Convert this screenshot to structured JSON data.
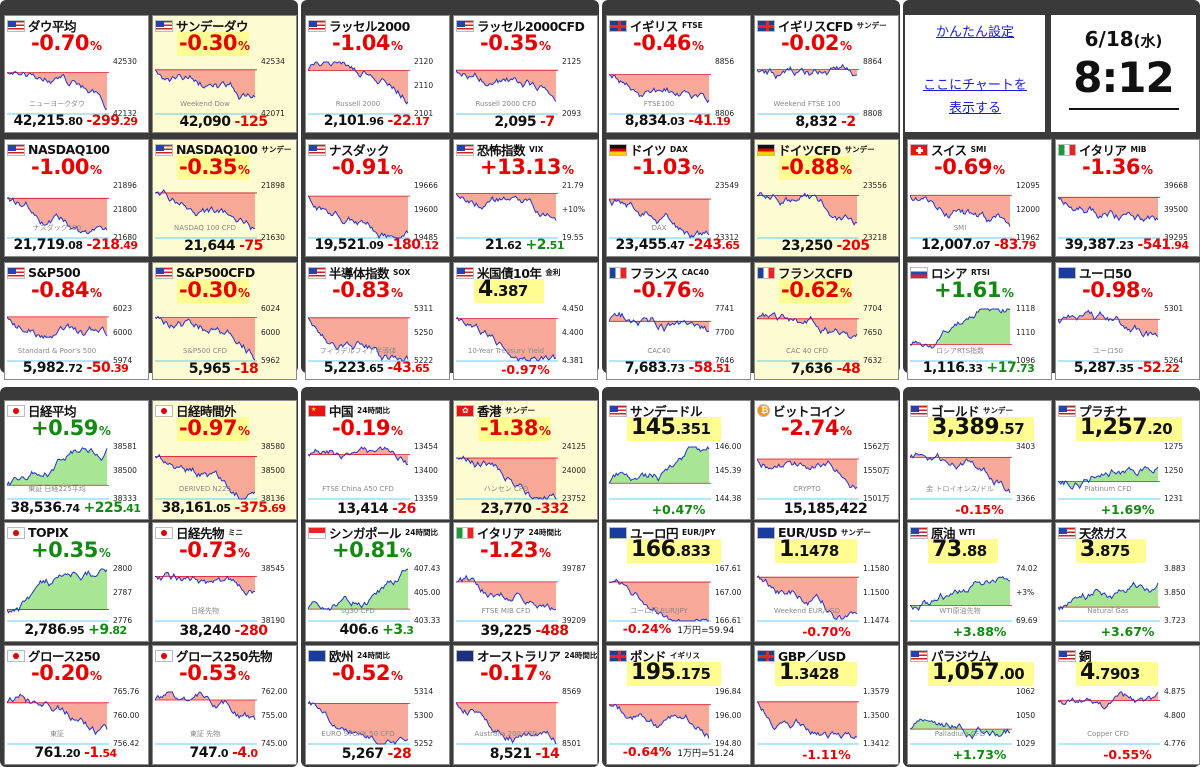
{
  "settings": {
    "easy_setup": "かんたん設定",
    "chart_line1": "ここにチャートを",
    "chart_line2": "表示する"
  },
  "clock": {
    "date": "6/18",
    "weekday": "(水)",
    "time": "8:12"
  },
  "cells": [
    {
      "id": "dow",
      "x": 0,
      "y": 0,
      "flag": "us",
      "name": "ダウ平均",
      "sub": "",
      "pct": "-0.70",
      "dir": "neg",
      "hl": false,
      "int": "42,215",
      "dec": ".80",
      "chg": "-299",
      "chgd": ".29",
      "ticks": [
        "42530",
        "",
        "42132"
      ],
      "wm": "ニューヨークダウ",
      "cap": "",
      "capdir": "neg",
      "extra": ""
    },
    {
      "id": "sunday-dow",
      "x": 1,
      "y": 0,
      "flag": "us",
      "name": "サンデーダウ",
      "sub": "",
      "pct": "-0.30",
      "dir": "neg",
      "hl": true,
      "int": "42,090",
      "dec": "",
      "chg": "-125",
      "chgd": "",
      "ticks": [
        "42534",
        "",
        "42071"
      ],
      "wm": "Weekend Dow",
      "cap": "",
      "capdir": "neg",
      "extra": ""
    },
    {
      "id": "russell",
      "x": 2,
      "y": 0,
      "flag": "us",
      "name": "ラッセル2000",
      "sub": "",
      "pct": "-1.04",
      "dir": "neg",
      "hl": false,
      "int": "2,101",
      "dec": ".96",
      "chg": "-22",
      "chgd": ".17",
      "ticks": [
        "2120",
        "2110",
        "2101"
      ],
      "wm": "Russell 2000",
      "cap": "",
      "capdir": "neg",
      "extra": ""
    },
    {
      "id": "russell-cfd",
      "x": 3,
      "y": 0,
      "flag": "us",
      "name": "ラッセル2000CFD",
      "sub": "",
      "pct": "-0.35",
      "dir": "neg",
      "hl": false,
      "int": "2,095",
      "dec": "",
      "chg": "-7",
      "chgd": "",
      "ticks": [
        "2125",
        "",
        "2093"
      ],
      "wm": "Russell 2000 CFD",
      "cap": "",
      "capdir": "neg",
      "extra": ""
    },
    {
      "id": "ftse",
      "x": 4,
      "y": 0,
      "flag": "uk",
      "name": "イギリス",
      "sub": "FTSE",
      "pct": "-0.46",
      "dir": "neg",
      "hl": false,
      "int": "8,834",
      "dec": ".03",
      "chg": "-41",
      "chgd": ".19",
      "ticks": [
        "8856",
        "",
        "8806"
      ],
      "wm": "FTSE100",
      "cap": "",
      "capdir": "neg",
      "extra": ""
    },
    {
      "id": "uk-cfd",
      "x": 5,
      "y": 0,
      "flag": "uk",
      "name": "イギリスCFD",
      "sub": "サンデー",
      "pct": "-0.02",
      "dir": "neg",
      "hl": false,
      "int": "8,832",
      "dec": "",
      "chg": "-2",
      "chgd": "",
      "ticks": [
        "8864",
        "",
        "8808"
      ],
      "wm": "Weekend FTSE 100",
      "cap": "",
      "capdir": "neg",
      "extra": ""
    },
    {
      "id": "nasdaq100",
      "x": 0,
      "y": 1,
      "flag": "us",
      "name": "NASDAQ100",
      "sub": "",
      "pct": "-1.00",
      "dir": "neg",
      "hl": false,
      "int": "21,719",
      "dec": ".08",
      "chg": "-218",
      "chgd": ".49",
      "ticks": [
        "21896",
        "21800",
        "21680"
      ],
      "wm": "ナスダック100",
      "cap": "",
      "capdir": "neg",
      "extra": ""
    },
    {
      "id": "nasdaq100-sun",
      "x": 1,
      "y": 1,
      "flag": "us",
      "name": "NASDAQ100",
      "sub": "サンデー",
      "pct": "-0.35",
      "dir": "neg",
      "hl": true,
      "int": "21,644",
      "dec": "",
      "chg": "-75",
      "chgd": "",
      "ticks": [
        "21898",
        "",
        "21630"
      ],
      "wm": "NASDAQ 100 CFD",
      "cap": "",
      "capdir": "neg",
      "extra": ""
    },
    {
      "id": "nasdaq",
      "x": 2,
      "y": 1,
      "flag": "us",
      "name": "ナスダック",
      "sub": "",
      "pct": "-0.91",
      "dir": "neg",
      "hl": false,
      "int": "19,521",
      "dec": ".09",
      "chg": "-180",
      "chgd": ".12",
      "ticks": [
        "19666",
        "19600",
        "19485"
      ],
      "wm": "",
      "cap": "",
      "capdir": "neg",
      "extra": ""
    },
    {
      "id": "vix",
      "x": 3,
      "y": 1,
      "flag": "us",
      "name": "恐怖指数",
      "sub": "VIX",
      "pct": "+13.13",
      "dir": "neg",
      "hl": false,
      "int": "21",
      "dec": ".62",
      "chg": "+2",
      "chgd": ".51",
      "ticks": [
        "21.79",
        "+10%",
        "19.55"
      ],
      "wm": "",
      "cap": "",
      "capdir": "neg",
      "extra": ""
    },
    {
      "id": "dax",
      "x": 4,
      "y": 1,
      "flag": "de",
      "name": "ドイツ",
      "sub": "DAX",
      "pct": "-1.03",
      "dir": "neg",
      "hl": false,
      "int": "23,455",
      "dec": ".47",
      "chg": "-243",
      "chgd": ".65",
      "ticks": [
        "23549",
        "",
        "23312"
      ],
      "wm": "DAX",
      "cap": "",
      "capdir": "neg",
      "extra": ""
    },
    {
      "id": "de-cfd",
      "x": 5,
      "y": 1,
      "flag": "de",
      "name": "ドイツCFD",
      "sub": "サンデー",
      "pct": "-0.88",
      "dir": "neg",
      "hl": true,
      "int": "23,250",
      "dec": "",
      "chg": "-205",
      "chgd": "",
      "ticks": [
        "23556",
        "",
        "23218"
      ],
      "wm": "",
      "cap": "",
      "capdir": "neg",
      "extra": ""
    },
    {
      "id": "smi",
      "x": 6,
      "y": 1,
      "flag": "ch",
      "name": "スイス",
      "sub": "SMI",
      "pct": "-0.69",
      "dir": "neg",
      "hl": false,
      "int": "12,007",
      "dec": ".07",
      "chg": "-83",
      "chgd": ".79",
      "ticks": [
        "12095",
        "12000",
        "11962"
      ],
      "wm": "SMI",
      "cap": "",
      "capdir": "neg",
      "extra": ""
    },
    {
      "id": "mib",
      "x": 7,
      "y": 1,
      "flag": "it",
      "name": "イタリア",
      "sub": "MIB",
      "pct": "-1.36",
      "dir": "neg",
      "hl": false,
      "int": "39,387",
      "dec": ".23",
      "chg": "-541",
      "chgd": ".94",
      "ticks": [
        "39668",
        "39500",
        "39295"
      ],
      "wm": "",
      "cap": "",
      "capdir": "neg",
      "extra": ""
    },
    {
      "id": "sp500",
      "x": 0,
      "y": 2,
      "flag": "us",
      "name": "S&P500",
      "sub": "",
      "pct": "-0.84",
      "dir": "neg",
      "hl": false,
      "int": "5,982",
      "dec": ".72",
      "chg": "-50",
      "chgd": ".39",
      "ticks": [
        "6023",
        "6000",
        "5974"
      ],
      "wm": "Standard & Poor's 500",
      "cap": "",
      "capdir": "neg",
      "extra": ""
    },
    {
      "id": "sp500-cfd",
      "x": 1,
      "y": 2,
      "flag": "us",
      "name": "S&P500CFD",
      "sub": "",
      "pct": "-0.30",
      "dir": "neg",
      "hl": true,
      "int": "5,965",
      "dec": "",
      "chg": "-18",
      "chgd": "",
      "ticks": [
        "6024",
        "6000",
        "5962"
      ],
      "wm": "S&P500 CFD",
      "cap": "",
      "capdir": "neg",
      "extra": ""
    },
    {
      "id": "sox",
      "x": 2,
      "y": 2,
      "flag": "us",
      "name": "半導体指数",
      "sub": "SOX",
      "pct": "-0.83",
      "dir": "neg",
      "hl": false,
      "int": "5,223",
      "dec": ".65",
      "chg": "-43",
      "chgd": ".65",
      "ticks": [
        "5311",
        "5250",
        "5222"
      ],
      "wm": "フィラデルフィア半導体",
      "cap": "",
      "capdir": "neg",
      "extra": ""
    },
    {
      "id": "us10y",
      "x": 3,
      "y": 2,
      "flag": "us",
      "name": "米国債10年",
      "sub": "金利",
      "pct": "4.387",
      "dir": "blk",
      "hl": false,
      "int": "",
      "dec": "",
      "chg": "",
      "chgd": "",
      "ticks": [
        "4.450",
        "4.400",
        "4.381"
      ],
      "wm": "10-Year Treasury Yield",
      "cap": "-0.97%",
      "capdir": "neg",
      "extra": ""
    },
    {
      "id": "cac",
      "x": 4,
      "y": 2,
      "flag": "fr",
      "name": "フランス",
      "sub": "CAC40",
      "pct": "-0.76",
      "dir": "neg",
      "hl": false,
      "int": "7,683",
      "dec": ".73",
      "chg": "-58",
      "chgd": ".51",
      "ticks": [
        "7741",
        "7700",
        "7646"
      ],
      "wm": "CAC40",
      "cap": "",
      "capdir": "neg",
      "extra": ""
    },
    {
      "id": "fr-cfd",
      "x": 5,
      "y": 2,
      "flag": "fr",
      "name": "フランスCFD",
      "sub": "",
      "pct": "-0.62",
      "dir": "neg",
      "hl": true,
      "int": "7,636",
      "dec": "",
      "chg": "-48",
      "chgd": "",
      "ticks": [
        "7704",
        "7650",
        "7632"
      ],
      "wm": "CAC 40 CFD",
      "cap": "",
      "capdir": "neg",
      "extra": ""
    },
    {
      "id": "rtsi",
      "x": 6,
      "y": 2,
      "flag": "ru",
      "name": "ロシア",
      "sub": "RTSI",
      "pct": "+1.61",
      "dir": "pos",
      "hl": false,
      "int": "1,116",
      "dec": ".33",
      "chg": "+17",
      "chgd": ".73",
      "ticks": [
        "1118",
        "1110",
        "1096"
      ],
      "wm": "ロシアRTS指数",
      "cap": "",
      "capdir": "neg",
      "extra": ""
    },
    {
      "id": "euro50",
      "x": 7,
      "y": 2,
      "flag": "eu",
      "name": "ユーロ50",
      "sub": "",
      "pct": "-0.98",
      "dir": "neg",
      "hl": false,
      "int": "5,287",
      "dec": ".35",
      "chg": "-52",
      "chgd": ".22",
      "ticks": [
        "5301",
        "",
        "5264"
      ],
      "wm": "ユーロ50",
      "cap": "",
      "capdir": "neg",
      "extra": ""
    },
    {
      "id": "n225",
      "x": 0,
      "y": 3,
      "flag": "jp",
      "name": "日経平均",
      "sub": "",
      "pct": "+0.59",
      "dir": "pos",
      "hl": false,
      "int": "38,536",
      "dec": ".74",
      "chg": "+225",
      "chgd": ".41",
      "ticks": [
        "38581",
        "38500",
        "38333"
      ],
      "wm": "東証 日経225平均",
      "cap": "",
      "capdir": "neg",
      "extra": ""
    },
    {
      "id": "n225-night",
      "x": 1,
      "y": 3,
      "flag": "jp",
      "name": "日経時間外",
      "sub": "",
      "pct": "-0.97",
      "dir": "neg",
      "hl": true,
      "int": "38,161",
      "dec": ".05",
      "chg": "-375",
      "chgd": ".69",
      "ticks": [
        "38580",
        "38500",
        "38136"
      ],
      "wm": "DERIVED N225",
      "cap": "",
      "capdir": "neg",
      "extra": ""
    },
    {
      "id": "china",
      "x": 2,
      "y": 3,
      "flag": "cn",
      "name": "中国",
      "sub": "24時間比",
      "pct": "-0.19",
      "dir": "neg",
      "hl": false,
      "int": "13,414",
      "dec": "",
      "chg": "-26",
      "chgd": "",
      "ticks": [
        "13454",
        "13400",
        "13359"
      ],
      "wm": "FTSE China A50 CFD",
      "cap": "",
      "capdir": "neg",
      "extra": ""
    },
    {
      "id": "hk",
      "x": 3,
      "y": 3,
      "flag": "hk",
      "name": "香港",
      "sub": "サンデー",
      "pct": "-1.38",
      "dir": "neg",
      "hl": true,
      "int": "23,770",
      "dec": "",
      "chg": "-332",
      "chgd": "",
      "ticks": [
        "24125",
        "24000",
        "23752"
      ],
      "wm": "ハンセン CFD",
      "cap": "",
      "capdir": "neg",
      "extra": ""
    },
    {
      "id": "usdjpy",
      "x": 4,
      "y": 3,
      "flag": "us",
      "name": "サンデードル",
      "sub": "",
      "pct": "145.351",
      "dir": "blk",
      "hl": false,
      "int": "",
      "dec": "",
      "chg": "",
      "chgd": "",
      "ticks": [
        "146.00",
        "145.39",
        "144.38"
      ],
      "wm": "",
      "cap": "+0.47%",
      "capdir": "pos",
      "extra": ""
    },
    {
      "id": "btc",
      "x": 5,
      "y": 3,
      "flag": "btc",
      "name": "ビットコイン",
      "sub": "",
      "pct": "-2.74",
      "dir": "neg",
      "hl": false,
      "int": "15,185,422",
      "dec": "",
      "chg": "",
      "chgd": "",
      "ticks": [
        "1562万",
        "1550万",
        "1501万"
      ],
      "wm": "CRYPTO",
      "cap": "",
      "capdir": "neg",
      "extra": ""
    },
    {
      "id": "gold",
      "x": 6,
      "y": 3,
      "flag": "us",
      "name": "ゴールド",
      "sub": "サンデー",
      "pct": "3,389.57",
      "dir": "blk",
      "hl": false,
      "int": "",
      "dec": "",
      "chg": "",
      "chgd": "",
      "ticks": [
        "3403",
        "",
        "3366"
      ],
      "wm": "金 トロイオンス/ドル",
      "cap": "-0.15%",
      "capdir": "neg",
      "extra": ""
    },
    {
      "id": "platinum",
      "x": 7,
      "y": 3,
      "flag": "us",
      "name": "プラチナ",
      "sub": "",
      "pct": "1,257.20",
      "dir": "blk",
      "hl": false,
      "int": "",
      "dec": "",
      "chg": "",
      "chgd": "",
      "ticks": [
        "1275",
        "1250",
        "1231"
      ],
      "wm": "Platinum CFD",
      "cap": "+1.69%",
      "capdir": "pos",
      "extra": ""
    },
    {
      "id": "topix",
      "x": 0,
      "y": 4,
      "flag": "jp",
      "name": "TOPIX",
      "sub": "",
      "pct": "+0.35",
      "dir": "pos",
      "hl": false,
      "int": "2,786",
      "dec": ".95",
      "chg": "+9",
      "chgd": ".82",
      "ticks": [
        "2800",
        "2787",
        "2776"
      ],
      "wm": "",
      "cap": "",
      "capdir": "neg",
      "extra": ""
    },
    {
      "id": "n225-mini",
      "x": 1,
      "y": 4,
      "flag": "jp",
      "name": "日経先物",
      "sub": "ミニ",
      "pct": "-0.73",
      "dir": "neg",
      "hl": false,
      "int": "38,240",
      "dec": "",
      "chg": "-280",
      "chgd": "",
      "ticks": [
        "38545",
        "",
        "38190"
      ],
      "wm": "日経先物",
      "cap": "",
      "capdir": "neg",
      "extra": ""
    },
    {
      "id": "sg",
      "x": 2,
      "y": 4,
      "flag": "sg",
      "name": "シンガポール",
      "sub": "24時間比",
      "pct": "+0.81",
      "dir": "pos",
      "hl": false,
      "int": "406",
      "dec": ".6",
      "chg": "+3",
      "chgd": ".3",
      "ticks": [
        "407.43",
        "405.00",
        "403.33"
      ],
      "wm": "sg30 CFD",
      "cap": "",
      "capdir": "neg",
      "extra": ""
    },
    {
      "id": "it24",
      "x": 3,
      "y": 4,
      "flag": "it",
      "name": "イタリア",
      "sub": "24時間比",
      "pct": "-1.23",
      "dir": "neg",
      "hl": false,
      "int": "39,225",
      "dec": "",
      "chg": "-488",
      "chgd": "",
      "ticks": [
        "39787",
        "",
        "39209"
      ],
      "wm": "FTSE MIB CFD",
      "cap": "",
      "capdir": "neg",
      "extra": ""
    },
    {
      "id": "eurjpy",
      "x": 4,
      "y": 4,
      "flag": "eu",
      "name": "ユーロ円",
      "sub": "EUR/JPY",
      "pct": "166.833",
      "dir": "blk",
      "hl": false,
      "int": "",
      "dec": "",
      "chg": "",
      "chgd": "",
      "ticks": [
        "167.61",
        "167.00",
        "166.61"
      ],
      "wm": "ユーロ円 EUR/JPY",
      "cap": "-0.24%",
      "capdir": "neg",
      "extra": "1万円=59.94"
    },
    {
      "id": "eurusd",
      "x": 5,
      "y": 4,
      "flag": "eu",
      "name": "EUR/USD",
      "sub": "サンデー",
      "pct": "1.1478",
      "dir": "blk",
      "hl": false,
      "int": "",
      "dec": "",
      "chg": "",
      "chgd": "",
      "ticks": [
        "1.1580",
        "1.1500",
        "1.1474"
      ],
      "wm": "Weekend EUR/USD",
      "cap": "-0.70%",
      "capdir": "neg",
      "extra": ""
    },
    {
      "id": "wti",
      "x": 6,
      "y": 4,
      "flag": "us",
      "name": "原油",
      "sub": "WTI",
      "pct": "73.88",
      "dir": "blk",
      "hl": false,
      "int": "",
      "dec": "",
      "chg": "",
      "chgd": "",
      "ticks": [
        "74.02",
        "+3%",
        "69.69"
      ],
      "wm": "WTI原油先物",
      "cap": "+3.88%",
      "capdir": "pos",
      "extra": ""
    },
    {
      "id": "natgas",
      "x": 7,
      "y": 4,
      "flag": "us",
      "name": "天然ガス",
      "sub": "",
      "pct": "3.875",
      "dir": "blk",
      "hl": false,
      "int": "",
      "dec": "",
      "chg": "",
      "chgd": "",
      "ticks": [
        "3.883",
        "3.850",
        "3.723"
      ],
      "wm": "Natural Gas",
      "cap": "+3.67%",
      "capdir": "pos",
      "extra": ""
    },
    {
      "id": "growth250",
      "x": 0,
      "y": 5,
      "flag": "jp",
      "name": "グロース250",
      "sub": "",
      "pct": "-0.20",
      "dir": "neg",
      "hl": false,
      "int": "761",
      "dec": ".20",
      "chg": "-1",
      "chgd": ".54",
      "ticks": [
        "765.76",
        "760.00",
        "756.42"
      ],
      "wm": "東証",
      "cap": "",
      "capdir": "neg",
      "extra": ""
    },
    {
      "id": "growth250f",
      "x": 1,
      "y": 5,
      "flag": "jp",
      "name": "グロース250先物",
      "sub": "",
      "pct": "-0.53",
      "dir": "neg",
      "hl": false,
      "int": "747",
      "dec": ".0",
      "chg": "-4",
      "chgd": ".0",
      "ticks": [
        "762.00",
        "755.00",
        "745.00"
      ],
      "wm": "東証 先物",
      "cap": "",
      "capdir": "neg",
      "extra": ""
    },
    {
      "id": "europe",
      "x": 2,
      "y": 5,
      "flag": "eu",
      "name": "欧州",
      "sub": "24時間比",
      "pct": "-0.52",
      "dir": "neg",
      "hl": false,
      "int": "5,267",
      "dec": "",
      "chg": "-28",
      "chgd": "",
      "ticks": [
        "5314",
        "5300",
        "5252"
      ],
      "wm": "EURO STOXX 50 CFD",
      "cap": "",
      "capdir": "neg",
      "extra": ""
    },
    {
      "id": "au",
      "x": 3,
      "y": 5,
      "flag": "au",
      "name": "オーストラリア",
      "sub": "24時間比",
      "pct": "-0.17",
      "dir": "neg",
      "hl": false,
      "int": "8,521",
      "dec": "",
      "chg": "-14",
      "chgd": "",
      "ticks": [
        "8569",
        "",
        "8501"
      ],
      "wm": "Australia 200 CFD",
      "cap": "",
      "capdir": "neg",
      "extra": ""
    },
    {
      "id": "gbpjpy",
      "x": 4,
      "y": 5,
      "flag": "uk",
      "name": "ポンド",
      "sub": "イギリス",
      "pct": "195.175",
      "dir": "blk",
      "hl": false,
      "int": "",
      "dec": "",
      "chg": "",
      "chgd": "",
      "ticks": [
        "196.84",
        "196.00",
        "194.80"
      ],
      "wm": "",
      "cap": "-0.64%",
      "capdir": "neg",
      "extra": "1万円=51.24"
    },
    {
      "id": "gbpusd",
      "x": 5,
      "y": 5,
      "flag": "uk",
      "name": "GBP／USD",
      "sub": "",
      "pct": "1.3428",
      "dir": "blk",
      "hl": false,
      "int": "",
      "dec": "",
      "chg": "",
      "chgd": "",
      "ticks": [
        "1.3579",
        "1.3500",
        "1.3412"
      ],
      "wm": "",
      "cap": "-1.11%",
      "capdir": "neg",
      "extra": ""
    },
    {
      "id": "palladium",
      "x": 6,
      "y": 5,
      "flag": "us",
      "name": "パラジウム",
      "sub": "",
      "pct": "1,057.00",
      "dir": "blk",
      "hl": false,
      "int": "",
      "dec": "",
      "chg": "",
      "chgd": "",
      "ticks": [
        "1062",
        "1050",
        "1029"
      ],
      "wm": "Palladium CFD",
      "cap": "+1.73%",
      "capdir": "pos",
      "extra": ""
    },
    {
      "id": "copper",
      "x": 7,
      "y": 5,
      "flag": "us",
      "name": "銅",
      "sub": "",
      "pct": "4.7903",
      "dir": "blk",
      "hl": false,
      "int": "",
      "dec": "",
      "chg": "",
      "chgd": "",
      "ticks": [
        "4.875",
        "4.800",
        "4.776"
      ],
      "wm": "Copper CFD",
      "cap": "-0.55%",
      "capdir": "neg",
      "extra": ""
    }
  ]
}
